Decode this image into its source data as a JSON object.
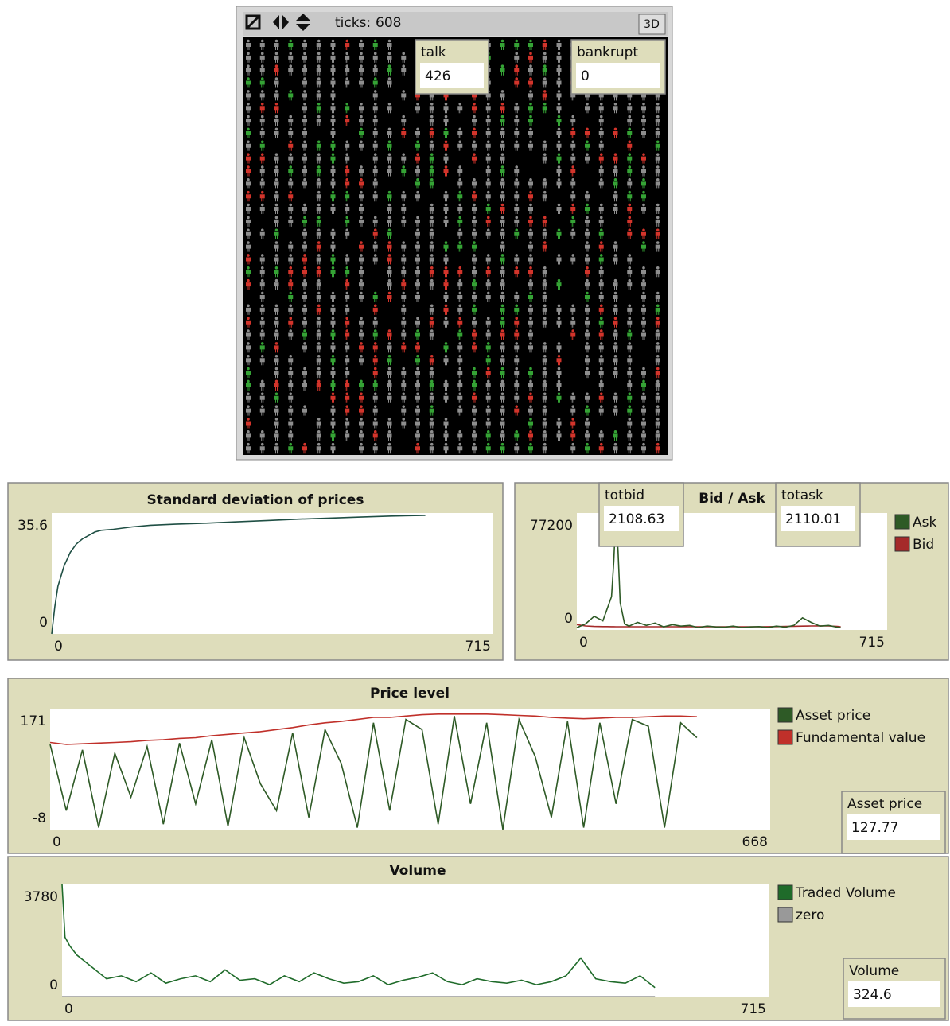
{
  "view": {
    "ticks_label": "ticks:",
    "ticks": 608,
    "button": "3D"
  },
  "monitors": [
    {
      "label": "talk",
      "value": 426
    },
    {
      "label": "bankrupt",
      "value": 0
    },
    {
      "label": "totbid",
      "value": 2108.63
    },
    {
      "label": "totask",
      "value": 2110.01
    },
    {
      "label": "Asset price",
      "value": 127.77
    },
    {
      "label": "Volume",
      "value": 324.6
    }
  ],
  "chart_data": [
    {
      "type": "line",
      "title": "Standard deviation of prices",
      "x": [
        0,
        5,
        10,
        20,
        30,
        40,
        50,
        60,
        70,
        80,
        100,
        130,
        160,
        200,
        250,
        300,
        350,
        400,
        450,
        500,
        550,
        605
      ],
      "series": [
        {
          "color": "#1f4f44",
          "values": [
            0,
            8,
            14,
            20,
            24,
            26.5,
            28,
            29,
            30,
            30.5,
            30.8,
            31.5,
            32,
            32.3,
            32.6,
            33,
            33.4,
            33.8,
            34.1,
            34.4,
            34.7,
            34.9
          ]
        }
      ],
      "xlim": [
        0,
        715
      ],
      "ylim": [
        0,
        35.6
      ],
      "xticks": [
        0,
        715
      ],
      "yticks": [
        0,
        35.6
      ]
    },
    {
      "type": "line",
      "title": "Bid / Ask",
      "x": [
        0,
        20,
        40,
        60,
        70,
        80,
        85,
        90,
        95,
        100,
        110,
        120,
        140,
        160,
        180,
        200,
        220,
        240,
        260,
        280,
        300,
        320,
        340,
        360,
        380,
        400,
        420,
        440,
        460,
        480,
        500,
        520,
        540,
        560,
        580,
        600,
        608
      ],
      "series": [
        {
          "name": "Ask",
          "color": "#2e5a26",
          "values": [
            1500,
            4000,
            9000,
            6000,
            14000,
            22000,
            45000,
            77000,
            52000,
            18000,
            4000,
            2500,
            5000,
            3000,
            4500,
            2000,
            3500,
            2500,
            3000,
            1500,
            2500,
            2000,
            1800,
            2500,
            1500,
            2000,
            2200,
            1500,
            2500,
            1800,
            3000,
            8000,
            5000,
            2500,
            3000,
            1800,
            1500
          ]
        },
        {
          "name": "Bid",
          "color": "#a52a2a",
          "values": [
            3500,
            2600,
            2300,
            2200,
            2200,
            2150,
            2150,
            2100,
            2100,
            2100,
            2100,
            2100,
            2100,
            2100,
            2100,
            2100,
            2100,
            2100,
            2100,
            2100,
            2100,
            2100,
            2100,
            2100,
            2100,
            2100,
            2100,
            2150,
            2200,
            2300,
            2400,
            2500,
            2600,
            2700,
            2600,
            2300,
            2108.63
          ]
        }
      ],
      "xlim": [
        0,
        715
      ],
      "ylim": [
        0,
        77200
      ],
      "xticks": [
        0,
        715
      ],
      "yticks": [
        0,
        77200
      ]
    },
    {
      "type": "line",
      "title": "Price level",
      "x": [
        0,
        15,
        30,
        45,
        60,
        75,
        90,
        105,
        120,
        135,
        150,
        165,
        180,
        195,
        210,
        225,
        240,
        255,
        270,
        285,
        300,
        315,
        330,
        345,
        360,
        375,
        390,
        405,
        420,
        435,
        450,
        465,
        480,
        495,
        510,
        525,
        540,
        555,
        570,
        585,
        600
      ],
      "series": [
        {
          "name": "Asset price",
          "color": "#2e5a26",
          "values": [
            118,
            20,
            110,
            -5,
            105,
            40,
            115,
            0,
            120,
            30,
            125,
            -3,
            128,
            60,
            20,
            135,
            10,
            140,
            90,
            -5,
            150,
            20,
            155,
            140,
            0,
            160,
            30,
            150,
            -8,
            155,
            100,
            10,
            152,
            -5,
            150,
            30,
            155,
            145,
            -5,
            150,
            128
          ]
        },
        {
          "name": "Fundamental value",
          "color": "#c0302a",
          "values": [
            121,
            118,
            119,
            120,
            121,
            122,
            124,
            125,
            127,
            128,
            131,
            133,
            135,
            137,
            140,
            143,
            147,
            150,
            152,
            155,
            158,
            158,
            160,
            162,
            163,
            163,
            163,
            163,
            162,
            161,
            160,
            158,
            157,
            156,
            157,
            158,
            158,
            159,
            160,
            160,
            159
          ]
        }
      ],
      "xlim": [
        0,
        668
      ],
      "ylim": [
        -8,
        171
      ],
      "xticks": [
        0,
        668
      ],
      "yticks": [
        -8,
        171
      ]
    },
    {
      "type": "line",
      "title": "Volume",
      "x": [
        0,
        3,
        8,
        15,
        30,
        45,
        60,
        75,
        90,
        105,
        120,
        135,
        150,
        165,
        180,
        195,
        210,
        225,
        240,
        255,
        270,
        285,
        300,
        315,
        330,
        345,
        360,
        375,
        390,
        405,
        420,
        435,
        450,
        465,
        480,
        495,
        510,
        525,
        540,
        555,
        570,
        585,
        600
      ],
      "series": [
        {
          "name": "Traded Volume",
          "color": "#1f6b2a",
          "values": [
            3780,
            2000,
            1700,
            1400,
            1000,
            600,
            700,
            500,
            800,
            450,
            600,
            700,
            500,
            900,
            550,
            600,
            400,
            700,
            500,
            800,
            600,
            450,
            500,
            700,
            400,
            550,
            650,
            800,
            500,
            400,
            600,
            500,
            450,
            550,
            400,
            500,
            700,
            1300,
            600,
            500,
            450,
            700,
            300
          ]
        },
        {
          "name": "zero",
          "color": "#999999",
          "values": [
            0,
            0,
            0,
            0,
            0,
            0,
            0,
            0,
            0,
            0,
            0,
            0,
            0,
            0,
            0,
            0,
            0,
            0,
            0,
            0,
            0,
            0,
            0,
            0,
            0,
            0,
            0,
            0,
            0,
            0,
            0,
            0,
            0,
            0,
            0,
            0,
            0,
            0,
            0,
            0,
            0,
            0,
            0
          ]
        }
      ],
      "xlim": [
        0,
        715
      ],
      "ylim": [
        0,
        3780
      ],
      "xticks": [
        0,
        715
      ],
      "yticks": [
        0,
        3780
      ]
    }
  ]
}
